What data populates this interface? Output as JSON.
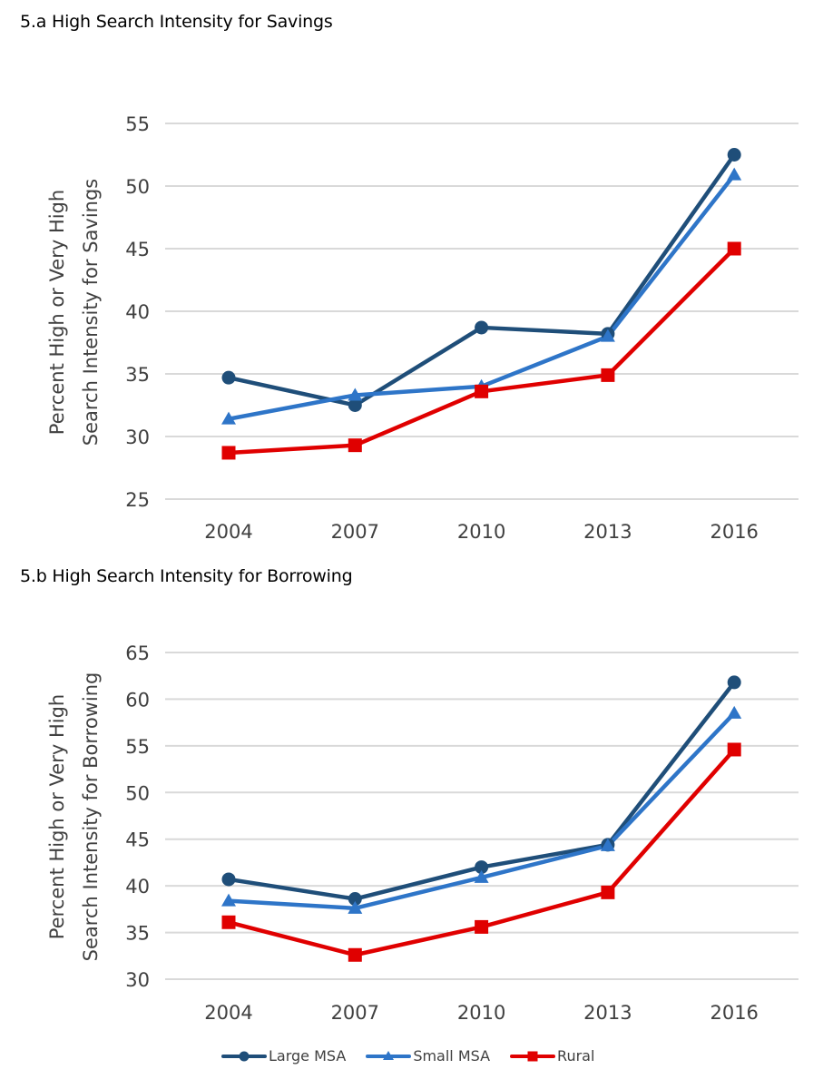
{
  "chart_data": [
    {
      "type": "line",
      "title": "5.a High Search Intensity for Savings",
      "xlabel": "",
      "ylabel": "Percent High or Very High Search Intensity for Savings",
      "ylabel_lines": [
        "Percent High or Very High",
        "Search Intensity for Savings"
      ],
      "categories": [
        "2004",
        "2007",
        "2010",
        "2013",
        "2016"
      ],
      "ylim": [
        25,
        55
      ],
      "yticks": [
        25,
        30,
        35,
        40,
        45,
        50,
        55
      ],
      "grid": true,
      "series": [
        {
          "name": "Large MSA",
          "marker": "circle",
          "color": "#1F4E79",
          "values": [
            34.7,
            32.5,
            38.7,
            38.2,
            52.5
          ]
        },
        {
          "name": "Small MSA",
          "marker": "triangle",
          "color": "#2E75C8",
          "values": [
            31.4,
            33.3,
            34.0,
            38.0,
            50.9
          ]
        },
        {
          "name": "Rural",
          "marker": "square",
          "color": "#E00000",
          "values": [
            28.7,
            29.3,
            33.6,
            34.9,
            45.0
          ]
        }
      ]
    },
    {
      "type": "line",
      "title": "5.b High Search Intensity for Borrowing",
      "xlabel": "",
      "ylabel": "Percent High or Very High Search Intensity for Borrowing",
      "ylabel_lines": [
        "Percent High or Very High",
        "Search Intensity for Borrowing"
      ],
      "categories": [
        "2004",
        "2007",
        "2010",
        "2013",
        "2016"
      ],
      "ylim": [
        30,
        65
      ],
      "yticks": [
        30,
        35,
        40,
        45,
        50,
        55,
        60,
        65
      ],
      "grid": true,
      "series": [
        {
          "name": "Large MSA",
          "marker": "circle",
          "color": "#1F4E79",
          "values": [
            40.7,
            38.6,
            42.0,
            44.4,
            61.8
          ]
        },
        {
          "name": "Small MSA",
          "marker": "triangle",
          "color": "#2E75C8",
          "values": [
            38.4,
            37.6,
            40.9,
            44.3,
            58.5
          ]
        },
        {
          "name": "Rural",
          "marker": "square",
          "color": "#E00000",
          "values": [
            36.1,
            32.6,
            35.6,
            39.3,
            54.6
          ]
        }
      ]
    }
  ],
  "legend": {
    "placement": "bottom-center",
    "items": [
      {
        "label": "Large MSA",
        "marker": "circle",
        "color": "#1F4E79"
      },
      {
        "label": "Small MSA",
        "marker": "triangle",
        "color": "#2E75C8"
      },
      {
        "label": "Rural",
        "marker": "square",
        "color": "#E00000"
      }
    ]
  },
  "gridline_color": "#D9D9D9"
}
